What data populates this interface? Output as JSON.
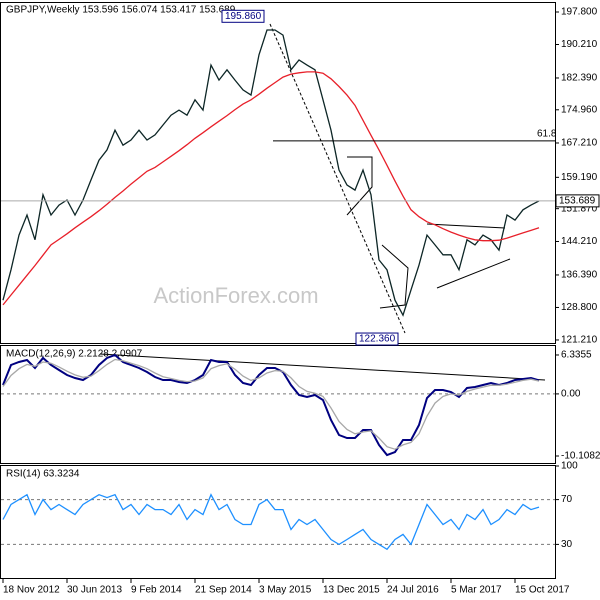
{
  "chart_data": [
    {
      "type": "line",
      "title": "GBPJPY,Weekly  153.596 156.074 153.417 153.689",
      "categories": [
        "18 Nov 2012",
        null,
        null,
        null,
        null,
        null,
        null,
        null,
        "30 Jun 2013",
        null,
        null,
        null,
        null,
        null,
        null,
        null,
        "9 Feb 2014",
        null,
        null,
        null,
        null,
        null,
        null,
        null,
        "21 Sep 2014",
        null,
        null,
        null,
        null,
        null,
        null,
        null,
        "3 May 2015",
        null,
        null,
        null,
        null,
        null,
        null,
        null,
        "13 Dec 2015",
        null,
        null,
        null,
        null,
        null,
        null,
        null,
        "24 Jul 2016",
        null,
        null,
        null,
        null,
        null,
        null,
        null,
        "5 Mar 2017",
        null,
        null,
        null,
        null,
        null,
        null,
        null,
        "15 Oct 2017",
        null,
        null,
        null
      ],
      "series": [
        {
          "color": "#0d2626",
          "values": [
            130.5,
            137.6,
            145.7,
            150.4,
            144.6,
            155.1,
            150.4,
            152.7,
            153.9,
            150.4,
            153.9,
            158.6,
            163.2,
            165.6,
            170.2,
            166.7,
            167.9,
            170.2,
            167.9,
            169.1,
            171.4,
            173.7,
            174.9,
            173.7,
            177.3,
            174.9,
            185.4,
            181.9,
            184.3,
            181.9,
            179.6,
            178.4,
            187.8,
            193.6,
            193.6,
            192.4,
            184.3,
            186.6,
            185.4,
            184.3,
            177.3,
            170.2,
            160.9,
            157.4,
            156.2,
            160.9,
            155.1,
            139.9,
            137.6,
            130.5,
            127.0,
            132.9,
            138.7,
            145.7,
            143.4,
            141.1,
            141.1,
            137.6,
            144.6,
            143.4,
            145.7,
            144.6,
            142.2,
            150.4,
            149.2,
            151.6,
            152.7,
            153.69
          ]
        },
        {
          "color": "#e8202a",
          "values": [
            129.4,
            131.7,
            134.0,
            136.3,
            138.6,
            141.0,
            143.4,
            144.7,
            146.0,
            147.4,
            148.7,
            150.0,
            151.4,
            152.9,
            154.5,
            156.0,
            157.6,
            159.1,
            160.6,
            161.5,
            162.8,
            164.1,
            165.4,
            166.8,
            168.3,
            169.6,
            171.0,
            172.3,
            173.6,
            175.0,
            176.3,
            177.3,
            178.6,
            180.0,
            181.3,
            182.6,
            183.3,
            183.6,
            183.8,
            183.8,
            183.5,
            182.2,
            180.4,
            178.4,
            176.0,
            172.5,
            169.0,
            165.6,
            162.0,
            158.3,
            154.8,
            151.6,
            150.0,
            148.8,
            148.1,
            147.2,
            146.4,
            145.7,
            145.1,
            144.6,
            144.4,
            144.4,
            144.5,
            145.0,
            145.6,
            146.2,
            146.8,
            147.4
          ]
        }
      ],
      "ylim": [
        120.5,
        200.6
      ],
      "yticks": [
        {
          "value": 197.8,
          "label": "197.800"
        },
        {
          "value": 190.21,
          "label": "190.210"
        },
        {
          "value": 182.39,
          "label": "182.390"
        },
        {
          "value": 174.96,
          "label": "174.960"
        },
        {
          "value": 167.21,
          "label": "167.210"
        },
        {
          "value": 159.19,
          "label": "159.190"
        },
        {
          "value": 151.87,
          "label": "151.870"
        },
        {
          "value": 144.21,
          "label": "144.210"
        },
        {
          "value": 136.39,
          "label": "136.390"
        },
        {
          "value": 128.8,
          "label": "128.800"
        },
        {
          "value": 121.21,
          "label": "121.210"
        }
      ],
      "last_value": {
        "value": 153.689,
        "label": "153.689"
      },
      "fib_level": {
        "value": 167.7,
        "label": "61.8"
      },
      "annotations": [
        {
          "value": 195.86,
          "label": "195.860"
        },
        {
          "value": 122.36,
          "label": "122.360"
        }
      ],
      "watermark": "ActionForex.com"
    },
    {
      "type": "line",
      "title": "MACD(12,26,9) 2.2128 2.0907",
      "series": [
        {
          "color": "#000080",
          "values": [
            1.45,
            4.7,
            5.19,
            5.52,
            4.22,
            5.84,
            4.7,
            3.89,
            3.08,
            2.59,
            2.26,
            3.08,
            4.7,
            5.84,
            6.33,
            5.19,
            4.7,
            4.22,
            3.57,
            2.75,
            2.26,
            2.26,
            1.94,
            1.77,
            2.26,
            3.08,
            5.52,
            5.19,
            5.19,
            3.08,
            1.77,
            1.45,
            3.08,
            4.22,
            4.22,
            3.57,
            1.45,
            -0.18,
            -0.5,
            -0.18,
            -0.99,
            -4.25,
            -6.69,
            -7.18,
            -7.18,
            -5.88,
            -5.88,
            -8.32,
            -9.95,
            -9.46,
            -7.51,
            -7.51,
            -5.06,
            -0.67,
            0.63,
            0.63,
            0.31,
            -0.5,
            0.96,
            1.12,
            1.45,
            1.77,
            1.45,
            1.77,
            2.26,
            2.43,
            2.59,
            2.21
          ]
        },
        {
          "color": "#a8a8a8",
          "values": [
            1.2,
            3.0,
            4.1,
            4.8,
            4.5,
            5.2,
            5.0,
            4.4,
            3.7,
            3.1,
            2.7,
            2.9,
            3.8,
            4.8,
            5.6,
            5.4,
            5.0,
            4.6,
            4.1,
            3.4,
            2.8,
            2.5,
            2.2,
            2.0,
            2.1,
            2.6,
            4.1,
            4.6,
            4.9,
            4.0,
            2.9,
            2.2,
            2.6,
            3.4,
            3.8,
            3.7,
            2.6,
            1.2,
            0.4,
            0.1,
            -0.4,
            -2.3,
            -4.5,
            -5.8,
            -6.5,
            -6.2,
            -6.0,
            -7.2,
            -8.6,
            -9.0,
            -8.3,
            -7.9,
            -6.5,
            -3.6,
            -1.5,
            -0.4,
            0.0,
            -0.2,
            0.4,
            0.8,
            1.1,
            1.4,
            1.4,
            1.6,
            1.9,
            2.2,
            2.4,
            2.09
          ]
        }
      ],
      "ylim": [
        -11.41,
        7.96
      ],
      "yticks": [
        6.3355,
        {
          "value": 0,
          "label": "0.00"
        },
        -10.1082
      ]
    },
    {
      "type": "line",
      "title": "RSI(14) 63.3234",
      "series": [
        {
          "color": "#1e90ff",
          "values": [
            52.2,
            65.6,
            70,
            74.4,
            56.7,
            70,
            61.1,
            65.6,
            61.1,
            56.7,
            65.6,
            70,
            74.4,
            71.8,
            74.4,
            61.1,
            65.6,
            56.7,
            65.6,
            61.1,
            61.1,
            56.7,
            65.6,
            52.2,
            61.1,
            56.7,
            74.4,
            61.1,
            65.6,
            52.2,
            47.8,
            47.8,
            65.6,
            70,
            61.1,
            61.1,
            43.3,
            52.2,
            47.8,
            52.2,
            43.3,
            34.4,
            30,
            34.4,
            38.9,
            43.3,
            34.4,
            30,
            25.6,
            34.4,
            38.9,
            30,
            47.8,
            65.6,
            56.7,
            47.8,
            52.2,
            43.3,
            56.7,
            52.2,
            61.1,
            47.8,
            52.2,
            61.1,
            56.7,
            65.6,
            61.1,
            63.3
          ]
        }
      ],
      "ylim": [
        0,
        100
      ],
      "yticks": [
        100,
        70,
        30
      ]
    }
  ]
}
